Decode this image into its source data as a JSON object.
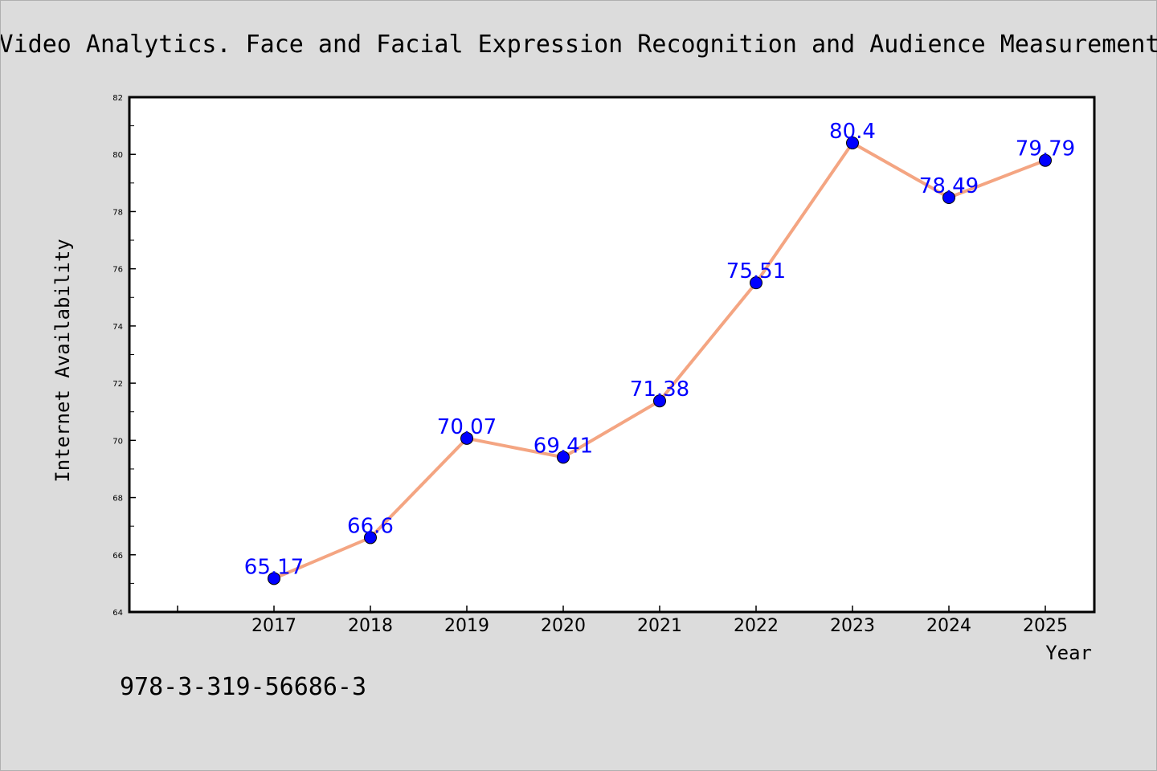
{
  "chart_data": {
    "type": "line",
    "title": "Video Analytics. Face and Facial Expression Recognition and Audience Measurement",
    "xlabel": "Year",
    "ylabel": "Internet Availability",
    "x": [
      "2017",
      "2018",
      "2019",
      "2020",
      "2021",
      "2022",
      "2023",
      "2024",
      "2025"
    ],
    "series": [
      {
        "values": [
          65.17,
          66.6,
          70.07,
          69.41,
          71.38,
          75.51,
          80.4,
          78.49,
          79.79
        ],
        "data_labels": [
          "65.17",
          "66.6",
          "70.07",
          "69.41",
          "71.38",
          "75.51",
          "80.4",
          "78.49",
          "79.79"
        ]
      }
    ],
    "ylim": [
      64,
      82
    ],
    "yticks": [
      "64",
      "66",
      "68",
      "70",
      "72",
      "74",
      "76",
      "78",
      "80",
      "82"
    ],
    "grid": false,
    "line_color": "#f4a582",
    "marker_color": "#0000ff",
    "label_color": "#0000ff",
    "background_color": "#dcdcdc",
    "plot_background_color": "#ffffff"
  },
  "footer": {
    "isbn": "978-3-319-56686-3"
  }
}
